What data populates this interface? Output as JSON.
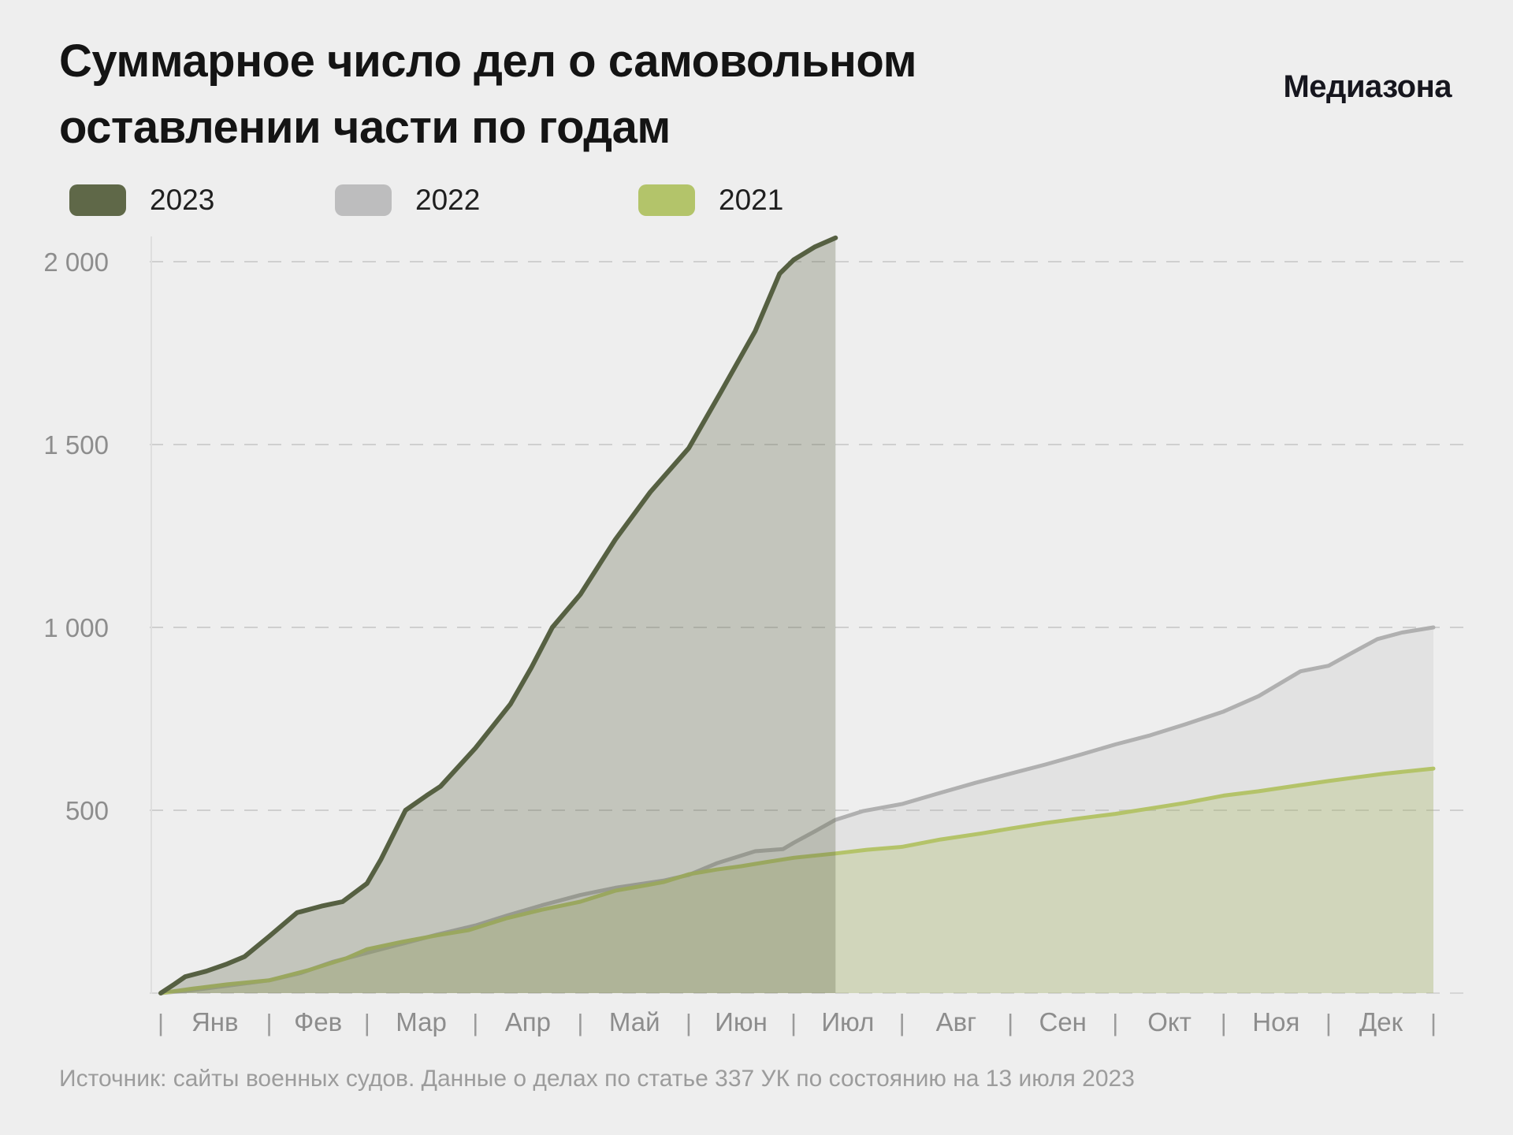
{
  "header": {
    "title": "Суммарное число дел о самовольном оставлении части по годам",
    "brand": "Медиазона"
  },
  "legend": [
    {
      "label": "2023",
      "color": "#5f6848"
    },
    {
      "label": "2022",
      "color": "#bdbdbe"
    },
    {
      "label": "2021",
      "color": "#b3c46a"
    }
  ],
  "footer": {
    "source": "Источник: сайты военных судов. Данные о делах по статье 337 УК по состоянию на 13 июля 2023"
  },
  "chart_data": {
    "type": "area",
    "title": "Суммарное число дел о самовольном оставлении части по годам",
    "xlabel": "",
    "ylabel": "",
    "x_axis": {
      "months": [
        "Янв",
        "Фев",
        "Мар",
        "Апр",
        "Май",
        "Июн",
        "Июл",
        "Авг",
        "Сен",
        "Окт",
        "Ноя",
        "Дек"
      ],
      "boundary_days": [
        1,
        32,
        60,
        91,
        121,
        152,
        182,
        213,
        244,
        274,
        305,
        335,
        365
      ],
      "separator_glyph": "|"
    },
    "y_axis": {
      "range": [
        0,
        2000
      ],
      "grid": "dashed",
      "ticks": [
        {
          "value": 500,
          "label": "500"
        },
        {
          "value": 1000,
          "label": "1 000"
        },
        {
          "value": 1500,
          "label": "1 500"
        },
        {
          "value": 2000,
          "label": "2 000"
        }
      ]
    },
    "legend_position": "top-left",
    "series": [
      {
        "name": "2022",
        "stroke": "#b0b0b0",
        "fill": "rgba(170,170,170,0.18)",
        "stroke_width": 5,
        "points": [
          [
            1,
            0
          ],
          [
            10,
            8
          ],
          [
            20,
            20
          ],
          [
            32,
            35
          ],
          [
            41,
            55
          ],
          [
            50,
            85
          ],
          [
            60,
            110
          ],
          [
            70,
            135
          ],
          [
            80,
            160
          ],
          [
            91,
            185
          ],
          [
            100,
            212
          ],
          [
            110,
            240
          ],
          [
            121,
            268
          ],
          [
            131,
            288
          ],
          [
            145,
            308
          ],
          [
            152,
            323
          ],
          [
            160,
            355
          ],
          [
            171,
            388
          ],
          [
            179,
            394
          ],
          [
            182,
            411
          ],
          [
            188,
            442
          ],
          [
            194,
            474
          ],
          [
            202,
            498
          ],
          [
            213,
            517
          ],
          [
            223,
            545
          ],
          [
            234,
            575
          ],
          [
            244,
            600
          ],
          [
            254,
            625
          ],
          [
            264,
            652
          ],
          [
            274,
            680
          ],
          [
            284,
            705
          ],
          [
            294,
            735
          ],
          [
            305,
            770
          ],
          [
            315,
            812
          ],
          [
            327,
            880
          ],
          [
            335,
            895
          ],
          [
            342,
            932
          ],
          [
            349,
            968
          ],
          [
            356,
            986
          ],
          [
            365,
            1000
          ]
        ]
      },
      {
        "name": "2021",
        "stroke": "#b4c369",
        "fill": "rgba(170,185,95,0.30)",
        "stroke_width": 5,
        "points": [
          [
            1,
            0
          ],
          [
            10,
            12
          ],
          [
            20,
            24
          ],
          [
            32,
            35
          ],
          [
            43,
            62
          ],
          [
            54,
            95
          ],
          [
            60,
            120
          ],
          [
            70,
            140
          ],
          [
            80,
            158
          ],
          [
            89,
            172
          ],
          [
            100,
            205
          ],
          [
            110,
            228
          ],
          [
            121,
            250
          ],
          [
            131,
            280
          ],
          [
            140,
            295
          ],
          [
            145,
            304
          ],
          [
            152,
            325
          ],
          [
            160,
            338
          ],
          [
            167,
            347
          ],
          [
            174,
            358
          ],
          [
            182,
            370
          ],
          [
            194,
            382
          ],
          [
            203,
            392
          ],
          [
            213,
            400
          ],
          [
            224,
            420
          ],
          [
            236,
            437
          ],
          [
            244,
            450
          ],
          [
            254,
            465
          ],
          [
            264,
            478
          ],
          [
            274,
            490
          ],
          [
            284,
            505
          ],
          [
            294,
            520
          ],
          [
            305,
            540
          ],
          [
            315,
            552
          ],
          [
            327,
            569
          ],
          [
            335,
            580
          ],
          [
            343,
            590
          ],
          [
            351,
            600
          ],
          [
            358,
            607
          ],
          [
            365,
            614
          ]
        ]
      },
      {
        "name": "2023",
        "stroke": "#566042",
        "fill": "rgba(95,104,72,0.30)",
        "stroke_width": 6,
        "points": [
          [
            1,
            0
          ],
          [
            5,
            25
          ],
          [
            8,
            45
          ],
          [
            14,
            60
          ],
          [
            20,
            80
          ],
          [
            25,
            100
          ],
          [
            32,
            155
          ],
          [
            40,
            220
          ],
          [
            47,
            238
          ],
          [
            53,
            250
          ],
          [
            60,
            300
          ],
          [
            64,
            366
          ],
          [
            71,
            500
          ],
          [
            77,
            540
          ],
          [
            81,
            565
          ],
          [
            91,
            670
          ],
          [
            101,
            790
          ],
          [
            107,
            890
          ],
          [
            113,
            1000
          ],
          [
            121,
            1090
          ],
          [
            131,
            1240
          ],
          [
            141,
            1370
          ],
          [
            152,
            1490
          ],
          [
            161,
            1640
          ],
          [
            171,
            1810
          ],
          [
            178,
            1967
          ],
          [
            182,
            2005
          ],
          [
            188,
            2040
          ],
          [
            194,
            2065
          ]
        ]
      }
    ]
  }
}
